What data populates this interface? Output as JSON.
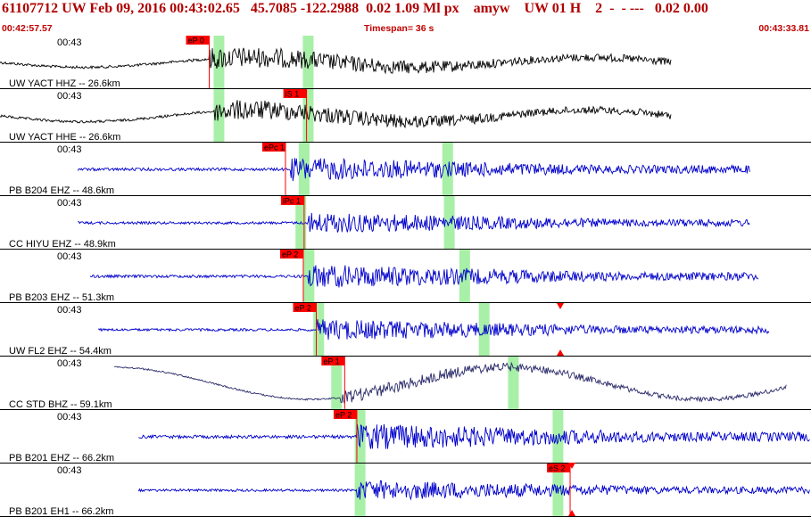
{
  "header": {
    "event_line": "61107712 UW Feb 09, 2016 00:43:02.65   45.7085 -122.2988  0.02 1.09 Ml px    amyw    UW 01 H    2  -  - ---   0.02 0.00",
    "start_time": "00:42:57.57",
    "timespan": "Timespan=  36 s",
    "end_time": "00:43:33.81"
  },
  "colors": {
    "title_red": "#b00000",
    "pick_red": "#ff0000",
    "trace_black": "#000000",
    "trace_blue": "#0000cc",
    "trace_navy": "#2a2a6a",
    "window_green": "#a8f0a8"
  },
  "traces": [
    {
      "label": "UW YACT HHZ -- 26.6km",
      "time": "00:43",
      "pick": "eP 0",
      "color": "black",
      "start": 0.0,
      "end": 0.828,
      "green": [
        0.27,
        0.38
      ],
      "pick_at": 0.258,
      "onset": 0.258,
      "amp": 0.42,
      "low": 0.25
    },
    {
      "label": "UW YACT HHE -- 26.6km",
      "time": "00:43",
      "pick": "iS 1",
      "color": "black",
      "start": 0.0,
      "end": 0.828,
      "green": [
        0.27,
        0.38
      ],
      "pick_at": 0.378,
      "onset": 0.265,
      "amp": 0.4,
      "low": 0.3
    },
    {
      "label": "PB B204 EHZ -- 48.6km",
      "time": "00:43",
      "pick": "ePc 1",
      "color": "blue",
      "start": 0.096,
      "end": 0.925,
      "green": [
        0.375,
        0.552
      ],
      "pick_at": 0.352,
      "onset": 0.358,
      "amp": 0.45,
      "low": 0.0
    },
    {
      "label": "CC HIYU EHZ -- 48.9km",
      "time": "00:43",
      "pick": "iPc 1",
      "color": "blue",
      "start": 0.096,
      "end": 0.925,
      "green": [
        0.371,
        0.554
      ],
      "pick_at": 0.375,
      "onset": 0.378,
      "amp": 0.4,
      "low": 0.0
    },
    {
      "label": "PB B203 EHZ -- 51.3km",
      "time": "00:43",
      "pick": "eP 2",
      "color": "blue",
      "start": 0.111,
      "end": 0.936,
      "green": [
        0.381,
        0.573
      ],
      "pick_at": 0.374,
      "onset": 0.38,
      "amp": 0.45,
      "low": 0.0
    },
    {
      "label": "UW FL2 EHZ -- 54.4km",
      "time": "00:43",
      "pick": "eP 2",
      "color": "blue",
      "start": 0.121,
      "end": 0.949,
      "green": [
        0.393,
        0.597
      ],
      "pick_at": 0.39,
      "onset": 0.39,
      "amp": 0.4,
      "low": 0.0
    },
    {
      "label": "CC STD BHZ -- 59.1km",
      "time": "00:43",
      "pick": "eP 1",
      "color": "navy",
      "start": 0.141,
      "end": 0.97,
      "green": [
        0.415,
        0.633
      ],
      "pick_at": 0.425,
      "onset": 0.42,
      "amp": 0.25,
      "low": 0.9
    },
    {
      "label": "PB B201 EHZ -- 66.2km",
      "time": "00:43",
      "pick": "eP 2",
      "color": "blue",
      "start": 0.171,
      "end": 0.999,
      "green": [
        0.444,
        0.688
      ],
      "pick_at": 0.44,
      "onset": 0.44,
      "amp": 0.5,
      "low": 0.0
    },
    {
      "label": "PB B201 EH1 -- 66.2km",
      "time": "00:43",
      "pick": "eS 2",
      "color": "blue",
      "start": 0.171,
      "end": 0.999,
      "green": [
        0.444,
        0.688
      ],
      "pick_at": 0.703,
      "onset": 0.44,
      "amp": 0.38,
      "low": 0.0
    }
  ]
}
